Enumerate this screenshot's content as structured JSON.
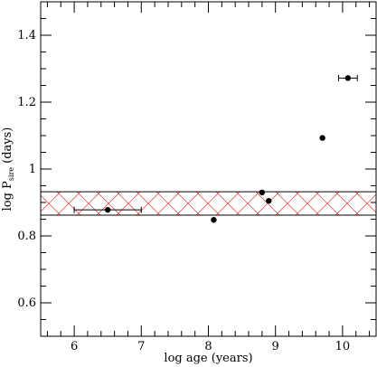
{
  "chart_data": {
    "type": "scatter",
    "xlabel": "log age (years)",
    "ylabel_main": "log P",
    "ylabel_sub": "sire",
    "ylabel_tail": " (days)",
    "xlim": [
      5.5,
      10.5
    ],
    "ylim": [
      0.5,
      1.5
    ],
    "x_ticks": [
      6,
      7,
      8,
      9,
      10
    ],
    "x_tick_labels": [
      "6",
      "7",
      "8",
      "9",
      "10"
    ],
    "y_ticks": [
      0.6,
      0.8,
      1.0,
      1.2,
      1.4
    ],
    "y_tick_labels": [
      "0.6",
      "0.8",
      "1",
      "1.2",
      "1.4"
    ],
    "x_minor_step": 0.2,
    "y_minor_step": 0.05,
    "band": {
      "y_low": 0.862,
      "y_high": 0.932,
      "hatch_color": "#e02020",
      "edge_color": "#000000"
    },
    "points": [
      {
        "x": 6.5,
        "y": 0.878,
        "xerr": [
          6.0,
          7.0
        ]
      },
      {
        "x": 8.08,
        "y": 0.848
      },
      {
        "x": 8.8,
        "y": 0.93
      },
      {
        "x": 8.9,
        "y": 0.905
      },
      {
        "x": 9.7,
        "y": 1.093
      },
      {
        "x": 10.08,
        "y": 1.272,
        "xerr": [
          9.94,
          10.22
        ]
      }
    ],
    "grid": false,
    "legend": "none"
  }
}
